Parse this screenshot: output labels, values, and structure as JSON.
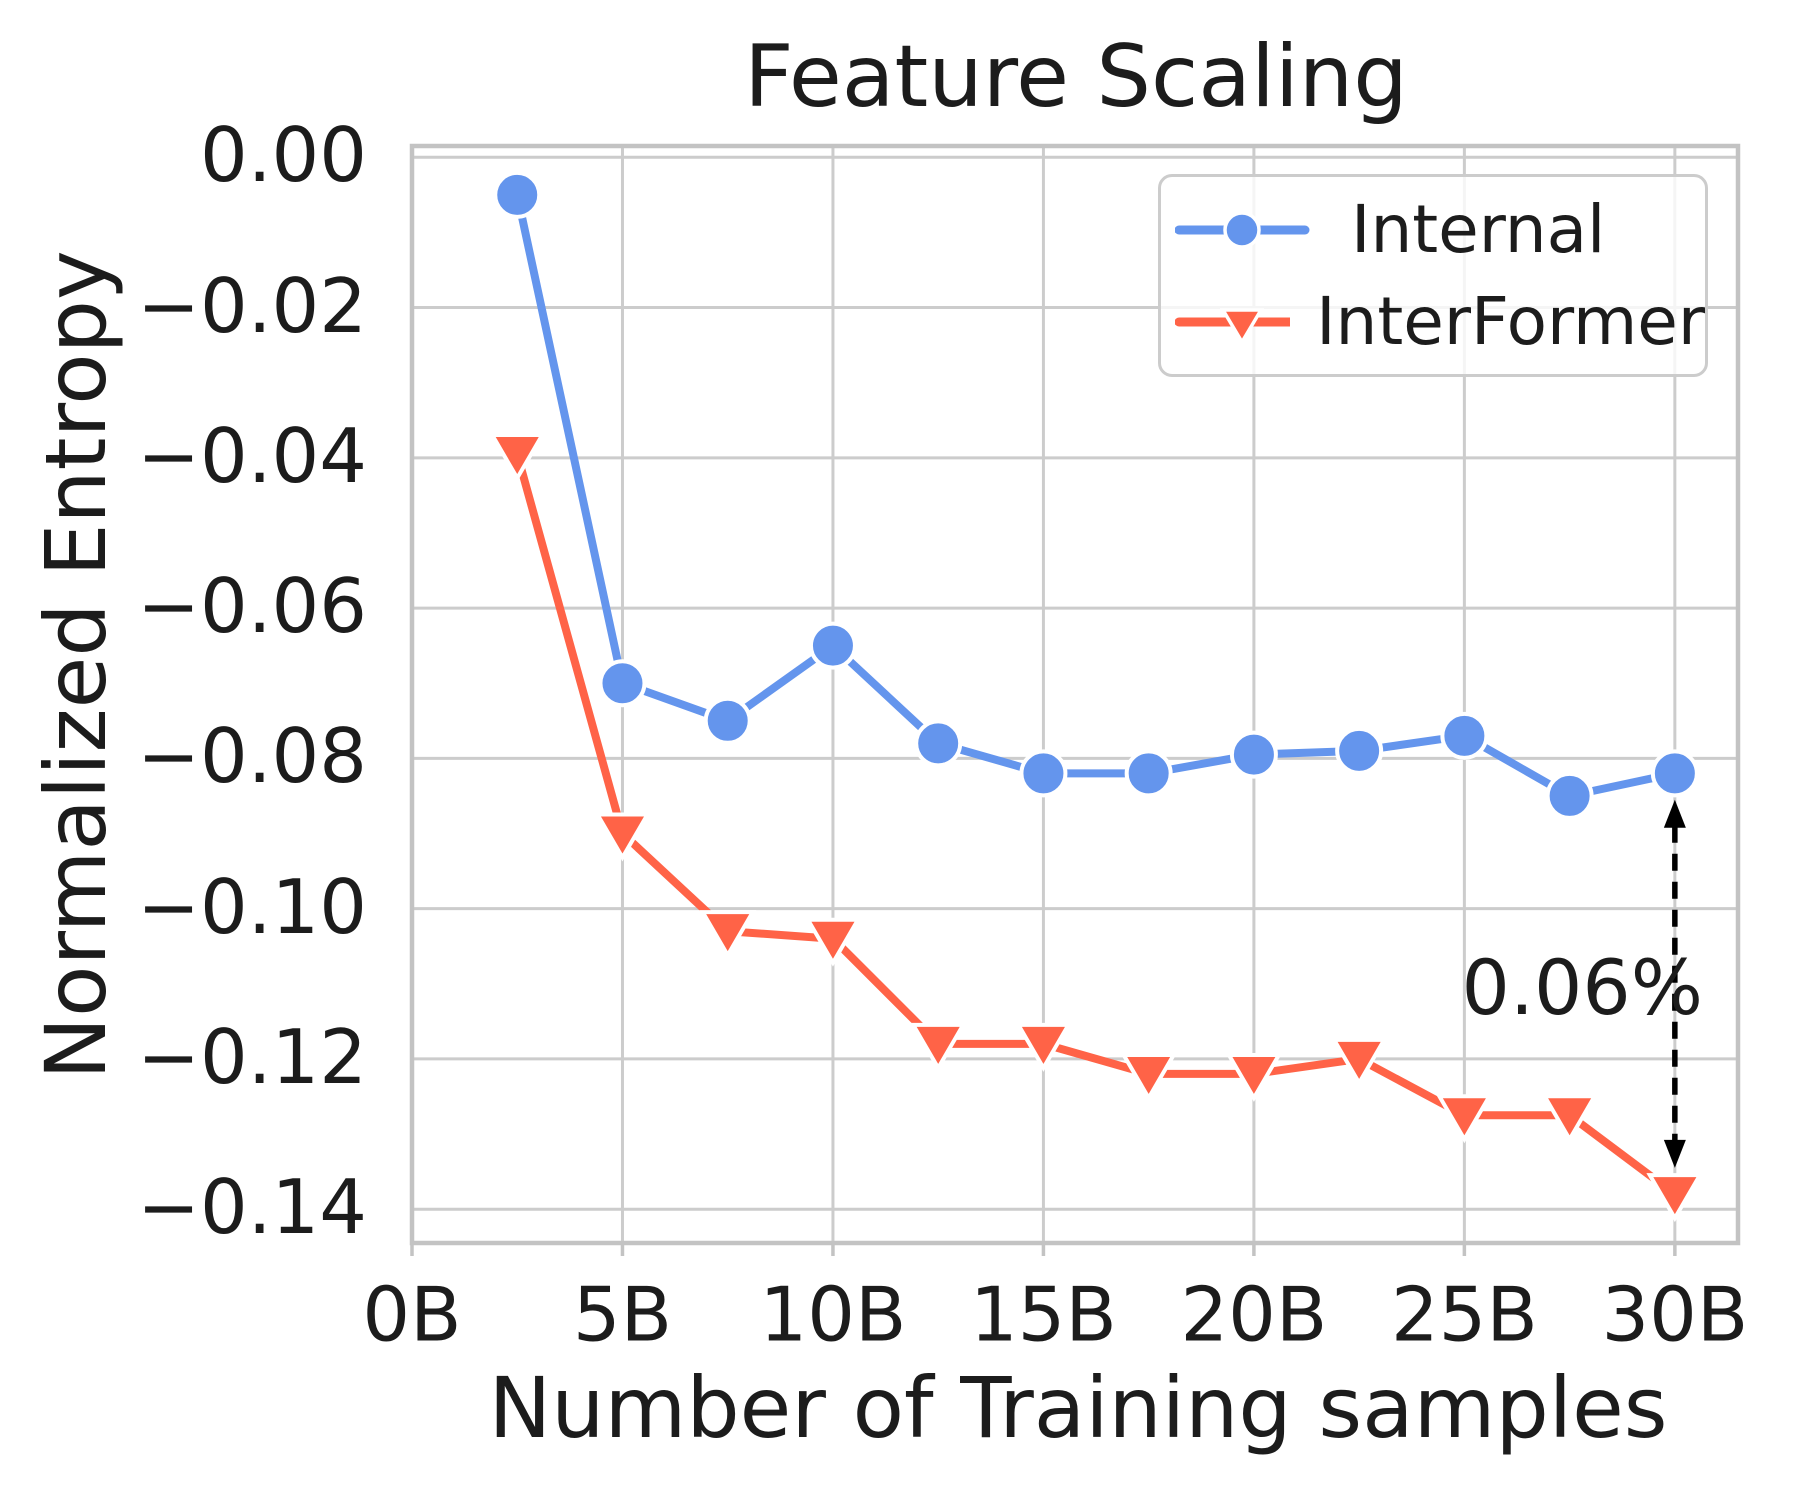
{
  "chart_data": {
    "type": "line",
    "title": "Feature Scaling",
    "xlabel": "Number of Training samples",
    "ylabel": "Normalized Entropy",
    "x": [
      2.5,
      5,
      7.5,
      10,
      12.5,
      15,
      17.5,
      20,
      22.5,
      25,
      27.5,
      30
    ],
    "series": [
      {
        "name": "Internal",
        "marker": "circle",
        "color": "#6495ED",
        "values": [
          -0.005,
          -0.07,
          -0.075,
          -0.065,
          -0.078,
          -0.082,
          -0.082,
          -0.0795,
          -0.079,
          -0.077,
          -0.085,
          -0.082
        ]
      },
      {
        "name": "InterFormer",
        "marker": "triangle-down",
        "color": "#FF6347",
        "values": [
          -0.0395,
          -0.09,
          -0.103,
          -0.104,
          -0.118,
          -0.118,
          -0.122,
          -0.122,
          -0.12,
          -0.1275,
          -0.1275,
          -0.138
        ]
      }
    ],
    "xticks": {
      "values": [
        0,
        5,
        10,
        15,
        20,
        25,
        30
      ],
      "labels": [
        "0B",
        "5B",
        "10B",
        "15B",
        "20B",
        "25B",
        "30B"
      ]
    },
    "yticks": {
      "values": [
        0,
        -0.02,
        -0.04,
        -0.06,
        -0.08,
        -0.1,
        -0.12,
        -0.14
      ],
      "labels": [
        "0.00",
        "−0.02",
        "−0.04",
        "−0.06",
        "−0.08",
        "−0.10",
        "−0.12",
        "−0.14"
      ]
    },
    "xlim": [
      0,
      31.5
    ],
    "ylim": [
      -0.1445,
      0.0015
    ],
    "grid": true,
    "legend": {
      "position": "upper right",
      "entries": [
        "Internal",
        "InterFormer"
      ]
    },
    "annotation": {
      "text": "0.06%",
      "x": 27.8,
      "y": -0.1105
    },
    "arrow": {
      "x": 30,
      "from": -0.0855,
      "to": -0.1345,
      "style": "dashed",
      "double_headed": true,
      "color": "#000000"
    }
  },
  "style_colors": {
    "grid": "#cccccc",
    "spine": "#c3c3c3",
    "text": "#1c1c1c",
    "background": "#ffffff",
    "marker_edge": "#ffffff"
  }
}
